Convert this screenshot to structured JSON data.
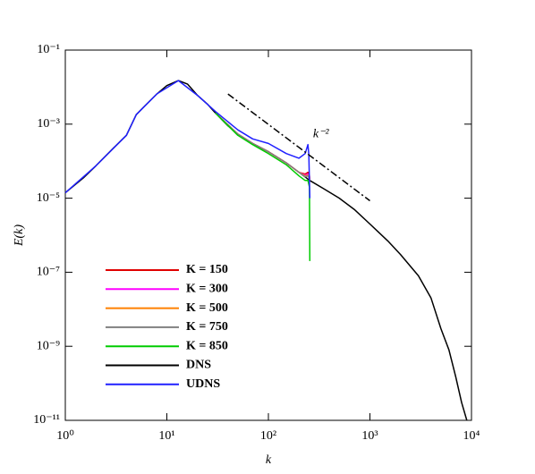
{
  "chart_data": {
    "type": "line",
    "x_label": "k",
    "y_label": "E(k)",
    "log_x": true,
    "log_y": true,
    "legend": "lower left",
    "xlim": [
      1,
      10000
    ],
    "ylim": [
      1e-11,
      0.1
    ],
    "xticks": [
      {
        "value": 1,
        "label": "10⁰"
      },
      {
        "value": 10,
        "label": "10¹"
      },
      {
        "value": 100,
        "label": "10²"
      },
      {
        "value": 1000,
        "label": "10³"
      },
      {
        "value": 10000,
        "label": "10⁴"
      }
    ],
    "yticks": [
      {
        "value": 1e-11,
        "label": "10⁻¹¹"
      },
      {
        "value": 1e-09,
        "label": "10⁻⁹"
      },
      {
        "value": 1e-07,
        "label": "10⁻⁷"
      },
      {
        "value": 1e-05,
        "label": "10⁻⁵"
      },
      {
        "value": 0.001,
        "label": "10⁻³"
      },
      {
        "value": 0.1,
        "label": "10⁻¹"
      }
    ],
    "series": [
      {
        "name": "K = 150",
        "color": "#e00000",
        "x": [
          30,
          50,
          70,
          100,
          150,
          200,
          230,
          245,
          254,
          256
        ],
        "values": [
          0.002,
          0.00054,
          0.0003,
          0.00018,
          9e-05,
          5e-05,
          4.5e-05,
          5e-05,
          4e-05,
          3e-05
        ]
      },
      {
        "name": "K = 300",
        "color": "#ff00ff",
        "x": [
          30,
          50,
          70,
          100,
          150,
          200,
          230,
          245,
          254,
          256
        ],
        "values": [
          0.002,
          0.00054,
          0.0003,
          0.00018,
          9e-05,
          5e-05,
          4.2e-05,
          4.5e-05,
          3.7e-05,
          3e-05
        ]
      },
      {
        "name": "K = 500",
        "color": "#ff8000",
        "x": [
          30,
          50,
          70,
          100,
          150,
          200,
          230,
          245,
          254,
          256
        ],
        "values": [
          0.002,
          0.00054,
          0.0003,
          0.00018,
          9e-05,
          5e-05,
          4e-05,
          4.2e-05,
          3.5e-05,
          3e-05
        ]
      },
      {
        "name": "K = 750",
        "color": "#808080",
        "x": [
          30,
          50,
          70,
          100,
          150,
          200,
          230,
          245,
          254,
          256
        ],
        "values": [
          0.002,
          0.00054,
          0.0003,
          0.00018,
          9e-05,
          5e-05,
          3.8e-05,
          4e-05,
          3.3e-05,
          3e-05
        ]
      },
      {
        "name": "K = 850",
        "color": "#00cc00",
        "x": [
          30,
          50,
          70,
          100,
          150,
          200,
          230,
          245,
          254,
          256
        ],
        "values": [
          0.002,
          0.0005,
          0.00028,
          0.00016,
          8e-05,
          4e-05,
          3e-05,
          3e-05,
          2e-05,
          2e-07
        ]
      },
      {
        "name": "DNS",
        "color": "#000000",
        "x": [
          1,
          1.5,
          2,
          3,
          4,
          5,
          6,
          8,
          10,
          13,
          16,
          20,
          25,
          30,
          40,
          50,
          70,
          100,
          150,
          200,
          256,
          350,
          500,
          700,
          1000,
          1500,
          2000,
          3000,
          4000,
          5000,
          6000,
          7000,
          8000,
          9000
        ],
        "values": [
          1.4e-05,
          3.5e-05,
          7.5e-05,
          0.00023,
          0.0005,
          0.0018,
          0.003,
          0.0066,
          0.011,
          0.015,
          0.012,
          0.006,
          0.0035,
          0.002,
          0.0009,
          0.00054,
          0.0003,
          0.00018,
          9e-05,
          5e-05,
          3e-05,
          1.8e-05,
          1e-05,
          5e-06,
          2e-06,
          7e-07,
          3e-07,
          8e-08,
          2e-08,
          3e-09,
          8e-10,
          1.5e-10,
          3e-11,
          1e-11
        ]
      },
      {
        "name": "UDNS",
        "color": "#2020ff",
        "x": [
          1,
          2,
          4,
          5,
          8,
          13,
          20,
          30,
          50,
          70,
          100,
          150,
          200,
          230,
          245,
          250,
          256
        ],
        "values": [
          1.4e-05,
          7.5e-05,
          0.0005,
          0.0018,
          0.0066,
          0.015,
          0.006,
          0.0022,
          0.0007,
          0.0004,
          0.0003,
          0.00016,
          0.00012,
          0.00016,
          0.00028,
          0.00015,
          1e-05
        ]
      }
    ],
    "reference_line": {
      "x": [
        40,
        1000
      ],
      "values": [
        0.0065,
        8.5e-06
      ]
    },
    "annotations": [
      {
        "text": "k⁻²"
      }
    ]
  }
}
